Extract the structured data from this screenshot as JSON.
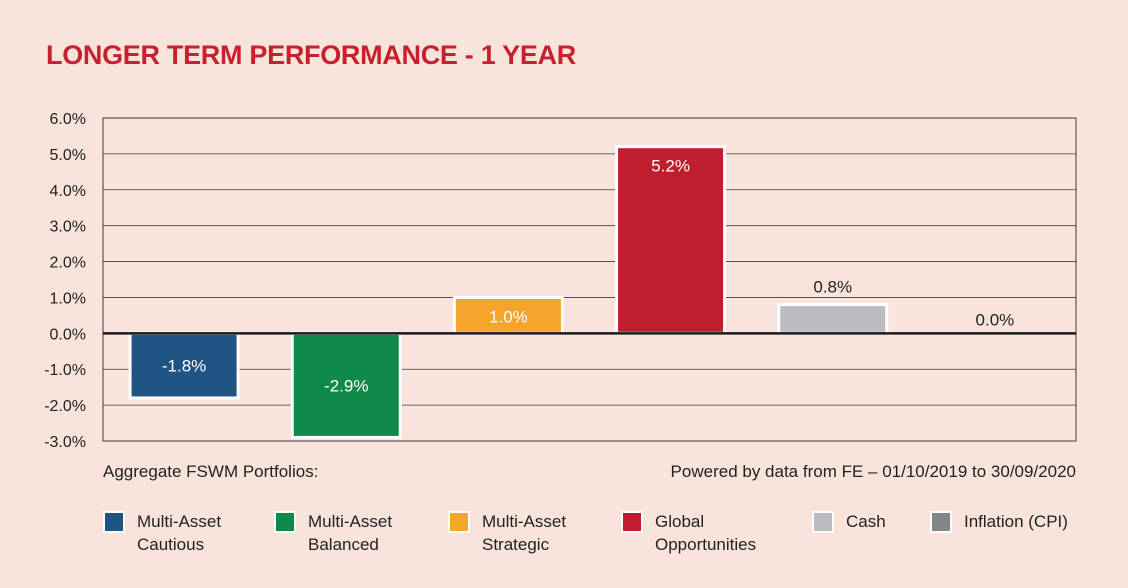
{
  "title": "LONGER TERM PERFORMANCE - 1 YEAR",
  "footer": {
    "left": "Aggregate FSWM Portfolios:",
    "right": "Powered by data from FE – 01/10/2019 to 30/09/2020"
  },
  "chart_data": {
    "type": "bar",
    "categories": [
      "Multi-Asset Cautious",
      "Multi-Asset Balanced",
      "Multi-Asset Strategic",
      "Global Opportunities",
      "Cash",
      "Inflation (CPI)"
    ],
    "values": [
      -1.8,
      -2.9,
      1.0,
      5.2,
      0.8,
      0.0
    ],
    "data_labels": [
      "-1.8%",
      "-2.9%",
      "1.0%",
      "5.2%",
      "0.8%",
      "0.0%"
    ],
    "colors": [
      "#1f5483",
      "#0f8a4a",
      "#f5a52c",
      "#be1e2d",
      "#bcbdc0",
      "#848587"
    ],
    "label_colors": [
      "#ffffff",
      "#ffffff",
      "#ffffff",
      "#ffffff",
      "#222222",
      "#222222"
    ],
    "ylim": [
      -3.0,
      6.0
    ],
    "yticks": [
      6.0,
      5.0,
      4.0,
      3.0,
      2.0,
      1.0,
      0.0,
      -1.0,
      -2.0,
      -3.0
    ],
    "ytick_labels": [
      "6.0%",
      "5.0%",
      "4.0%",
      "3.0%",
      "2.0%",
      "1.0%",
      "0.0%",
      "-1.0%",
      "-2.0%",
      "-3.0%"
    ],
    "grid": true,
    "legend_position": "bottom"
  },
  "legend": [
    {
      "label": "Multi-Asset\nCautious",
      "color": "#1f5483"
    },
    {
      "label": "Multi-Asset\nBalanced",
      "color": "#0f8a4a"
    },
    {
      "label": "Multi-Asset\nStrategic",
      "color": "#f5a52c"
    },
    {
      "label": "Global\nOpportunities",
      "color": "#be1e2d"
    },
    {
      "label": "Cash",
      "color": "#bcbdc0"
    },
    {
      "label": "Inflation (CPI)",
      "color": "#848587"
    }
  ]
}
